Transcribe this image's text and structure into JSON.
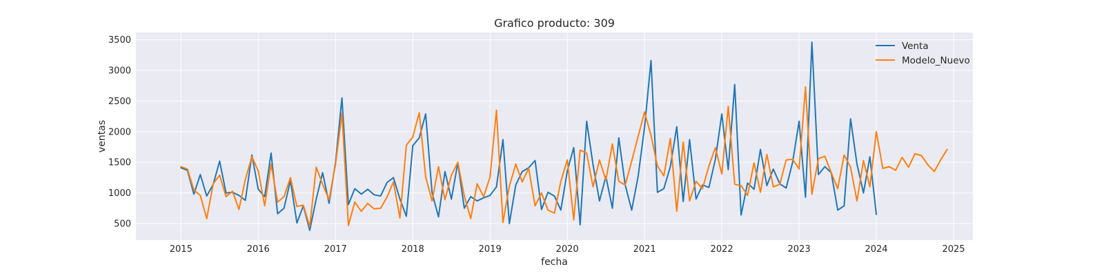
{
  "chart_data": {
    "type": "line",
    "title": "Grafico producto: 309",
    "xlabel": "fecha",
    "ylabel": "ventas",
    "x_start": "2015-01",
    "x_frequency": "monthly",
    "xlim": [
      "2014-06",
      "2025-04"
    ],
    "ylim": [
      230,
      3620
    ],
    "x_ticks": [
      "2015",
      "2016",
      "2017",
      "2018",
      "2019",
      "2020",
      "2021",
      "2022",
      "2023",
      "2024",
      "2025"
    ],
    "y_ticks": [
      500,
      1000,
      1500,
      2000,
      2500,
      3000,
      3500
    ],
    "grid": true,
    "legend_position": "top-right",
    "series": [
      {
        "name": "Venta",
        "color": "#1f77b4",
        "values": [
          1410,
          1370,
          980,
          1300,
          950,
          1140,
          1520,
          1000,
          1010,
          960,
          880,
          1620,
          1060,
          940,
          1650,
          660,
          750,
          1200,
          510,
          790,
          390,
          900,
          1330,
          830,
          1500,
          2550,
          810,
          1070,
          980,
          1060,
          970,
          950,
          1170,
          1250,
          900,
          620,
          1770,
          1900,
          2290,
          1000,
          610,
          1350,
          900,
          1490,
          750,
          940,
          870,
          920,
          960,
          1100,
          1870,
          500,
          1130,
          1350,
          1410,
          1530,
          730,
          1010,
          950,
          720,
          1360,
          1740,
          480,
          2170,
          1460,
          870,
          1270,
          750,
          1900,
          1130,
          720,
          1270,
          2070,
          3160,
          1010,
          1070,
          1430,
          2080,
          860,
          1870,
          900,
          1130,
          1090,
          1550,
          2290,
          1380,
          2770,
          640,
          1160,
          1060,
          1710,
          1120,
          1390,
          1150,
          1080,
          1500,
          2170,
          930,
          3460,
          1300,
          1430,
          1330,
          720,
          790,
          2210,
          1470,
          1000,
          1590,
          650
        ],
        "values_note": ""
      },
      {
        "name": "Modelo_Nuevo",
        "color": "#ff7f0e",
        "values": [
          1430,
          1390,
          1050,
          960,
          580,
          1150,
          1290,
          940,
          1030,
          730,
          1220,
          1590,
          1360,
          790,
          1470,
          850,
          940,
          1250,
          780,
          800,
          450,
          1420,
          1140,
          890,
          1470,
          2300,
          470,
          850,
          700,
          830,
          740,
          750,
          930,
          1180,
          590,
          1780,
          1910,
          2310,
          1260,
          870,
          1430,
          890,
          1290,
          1500,
          950,
          580,
          1150,
          940,
          1260,
          2350,
          520,
          1110,
          1470,
          1180,
          1400,
          790,
          1000,
          720,
          670,
          1190,
          1540,
          560,
          1700,
          1650,
          1100,
          1540,
          1210,
          1800,
          1190,
          1130,
          1520,
          1920,
          2320,
          1940,
          1440,
          1280,
          1890,
          700,
          1830,
          870,
          1190,
          1070,
          1440,
          1740,
          1310,
          2410,
          1140,
          1120,
          960,
          1490,
          1010,
          1630,
          1100,
          1140,
          1540,
          1550,
          1390,
          2730,
          980,
          1560,
          1600,
          1330,
          1070,
          1620,
          1420,
          870,
          1530,
          1100,
          2000,
          1400,
          1430,
          1370,
          1580,
          1420,
          1640,
          1610,
          1460,
          1350,
          1540,
          1710
        ]
      }
    ]
  }
}
